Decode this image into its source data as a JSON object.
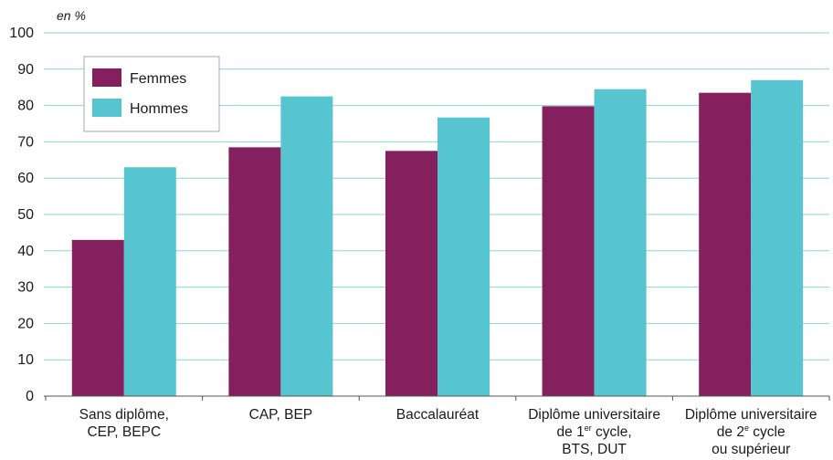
{
  "chart_data": {
    "type": "bar",
    "unit_label": "en %",
    "categories": [
      [
        "Sans diplôme,",
        "CEP, BEPC"
      ],
      [
        "CAP, BEP"
      ],
      [
        "Baccalauréat"
      ],
      [
        "Diplôme universitaire",
        "de 1er cycle,",
        "BTS, DUT"
      ],
      [
        "Diplôme universitaire",
        "de 2e cycle",
        "ou supérieur"
      ]
    ],
    "series": [
      {
        "name": "Femmes",
        "color": "#85205e",
        "values": [
          43,
          68.5,
          67.5,
          79.8,
          83.5
        ]
      },
      {
        "name": "Hommes",
        "color": "#57c5d0",
        "values": [
          63,
          82.5,
          76.7,
          84.5,
          87
        ]
      }
    ],
    "ylim": [
      0,
      100
    ],
    "yticks": [
      0,
      10,
      20,
      30,
      40,
      50,
      60,
      70,
      80,
      90,
      100
    ],
    "grid": true,
    "legend_position": "top-left"
  }
}
